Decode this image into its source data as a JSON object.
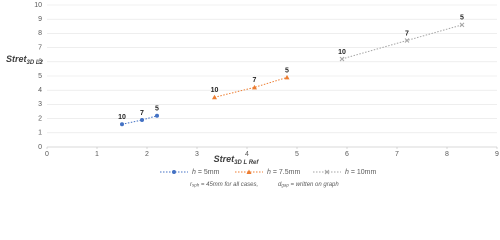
{
  "chart_data": {
    "type": "line",
    "xlabel": "Stret",
    "xlabel_sub": "3D L Ref",
    "ylabel": "Stret",
    "ylabel_sub": "3D L2",
    "xlim": [
      0,
      9
    ],
    "xticks": [
      0,
      1,
      2,
      3,
      4,
      5,
      6,
      7,
      8,
      9
    ],
    "ylim": [
      0,
      10
    ],
    "yticks": [
      0,
      1,
      2,
      3,
      4,
      5,
      6,
      7,
      8,
      9,
      10
    ],
    "grid": true,
    "series": [
      {
        "name_var": "h",
        "name": " = 5mm",
        "color": "#4472c4",
        "marker": "circle",
        "x": [
          1.5,
          1.9,
          2.2
        ],
        "values": [
          1.6,
          1.9,
          2.2
        ],
        "point_labels": [
          "10",
          "7",
          "5"
        ]
      },
      {
        "name_var": "h",
        "name": " = 7.5mm",
        "color": "#ed7d31",
        "marker": "triangle",
        "x": [
          3.35,
          4.15,
          4.8
        ],
        "values": [
          3.5,
          4.2,
          4.9
        ],
        "point_labels": [
          "10",
          "7",
          "5"
        ]
      },
      {
        "name_var": "h",
        "name": " = 10mm",
        "color": "#a5a5a5",
        "marker": "x",
        "x": [
          5.9,
          7.2,
          8.3
        ],
        "values": [
          6.2,
          7.5,
          8.6
        ],
        "point_labels": [
          "10",
          "7",
          "5"
        ]
      }
    ],
    "note": [
      {
        "text": "r",
        "sub": "sph",
        "rest": " = 45mm for all cases,"
      },
      {
        "text": "d",
        "sub": "gap",
        "rest": " = written on graph"
      }
    ]
  }
}
